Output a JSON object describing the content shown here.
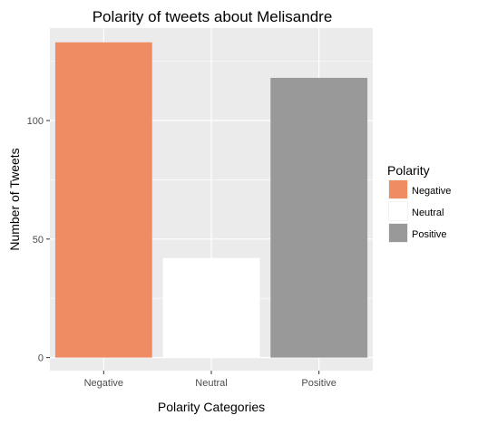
{
  "chart_data": {
    "type": "bar",
    "title": "Polarity of tweets about Melisandre",
    "xlabel": "Polarity Categories",
    "ylabel": "Number of Tweets",
    "categories": [
      "Negative",
      "Neutral",
      "Positive"
    ],
    "values": [
      133,
      42,
      118
    ],
    "colors": [
      "#f08c64",
      "#ffffff",
      "#999999"
    ],
    "ylim": [
      -5.5,
      139
    ],
    "yticks": [
      0,
      50,
      100
    ],
    "ytick_labels": [
      "0",
      "50",
      "100"
    ],
    "grid": true,
    "panel_background": "#ebebeb",
    "gridline_color": "#ffffff",
    "legend": {
      "title": "Polarity",
      "position": "right",
      "entries": [
        "Negative",
        "Neutral",
        "Positive"
      ]
    }
  }
}
